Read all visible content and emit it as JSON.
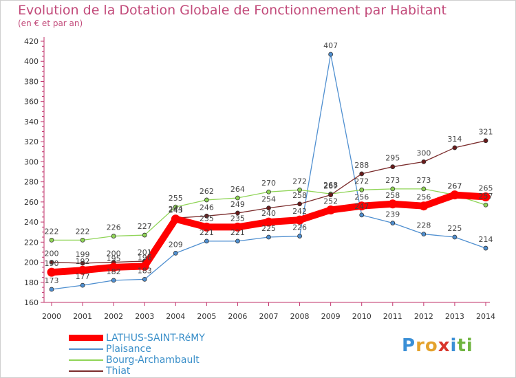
{
  "title": "Evolution de la Dotation Globale de Fonctionnement par Habitant",
  "subtitle": "(en € et par an)",
  "logo": {
    "letters": [
      {
        "ch": "P",
        "color": "#3a8fd6"
      },
      {
        "ch": "r",
        "color": "#e4a22c"
      },
      {
        "ch": "o",
        "color": "#e4a22c"
      },
      {
        "ch": "x",
        "color": "#d8352b"
      },
      {
        "ch": "i",
        "color": "#3a8fd6"
      },
      {
        "ch": "t",
        "color": "#6fb43f"
      },
      {
        "ch": "i",
        "color": "#6fb43f"
      }
    ]
  },
  "chart_data": {
    "type": "line",
    "title": "Evolution de la Dotation Globale de Fonctionnement par Habitant",
    "subtitle": "(en € et par an)",
    "xlabel": "",
    "ylabel": "",
    "x": [
      "2000",
      "2001",
      "2002",
      "2003",
      "2004",
      "2005",
      "2006",
      "2007",
      "2008",
      "2009",
      "2010",
      "2011",
      "2012",
      "2013",
      "2014"
    ],
    "ylim": [
      160,
      420
    ],
    "yticks": [
      160,
      180,
      200,
      220,
      240,
      260,
      280,
      300,
      320,
      340,
      360,
      380,
      400,
      420
    ],
    "grid": false,
    "legend": "bottom-left",
    "series": [
      {
        "name": "LATHUS-SAINT-RéMY",
        "color": "#ff0000",
        "marker": "#cc0000",
        "thick": true,
        "values": [
          190,
          192,
          195,
          196,
          243,
          235,
          235,
          240,
          242,
          252,
          256,
          258,
          256,
          267,
          265
        ]
      },
      {
        "name": "Plaisance",
        "color": "#4f8fd0",
        "marker": "#4f8fd0",
        "thick": false,
        "values": [
          173,
          177,
          182,
          183,
          209,
          221,
          221,
          225,
          226,
          407,
          247,
          239,
          228,
          225,
          214
        ]
      },
      {
        "name": "Bourg-Archambault",
        "color": "#8fd456",
        "marker": "#8fd456",
        "thick": false,
        "values": [
          222,
          222,
          226,
          227,
          255,
          262,
          264,
          270,
          272,
          268,
          272,
          273,
          273,
          267,
          257
        ]
      },
      {
        "name": "Thiat",
        "color": "#7a2b2b",
        "marker": "#6b1b1b",
        "thick": false,
        "values": [
          200,
          199,
          200,
          201,
          244,
          246,
          249,
          254,
          258,
          267,
          288,
          295,
          300,
          314,
          321
        ]
      }
    ]
  }
}
